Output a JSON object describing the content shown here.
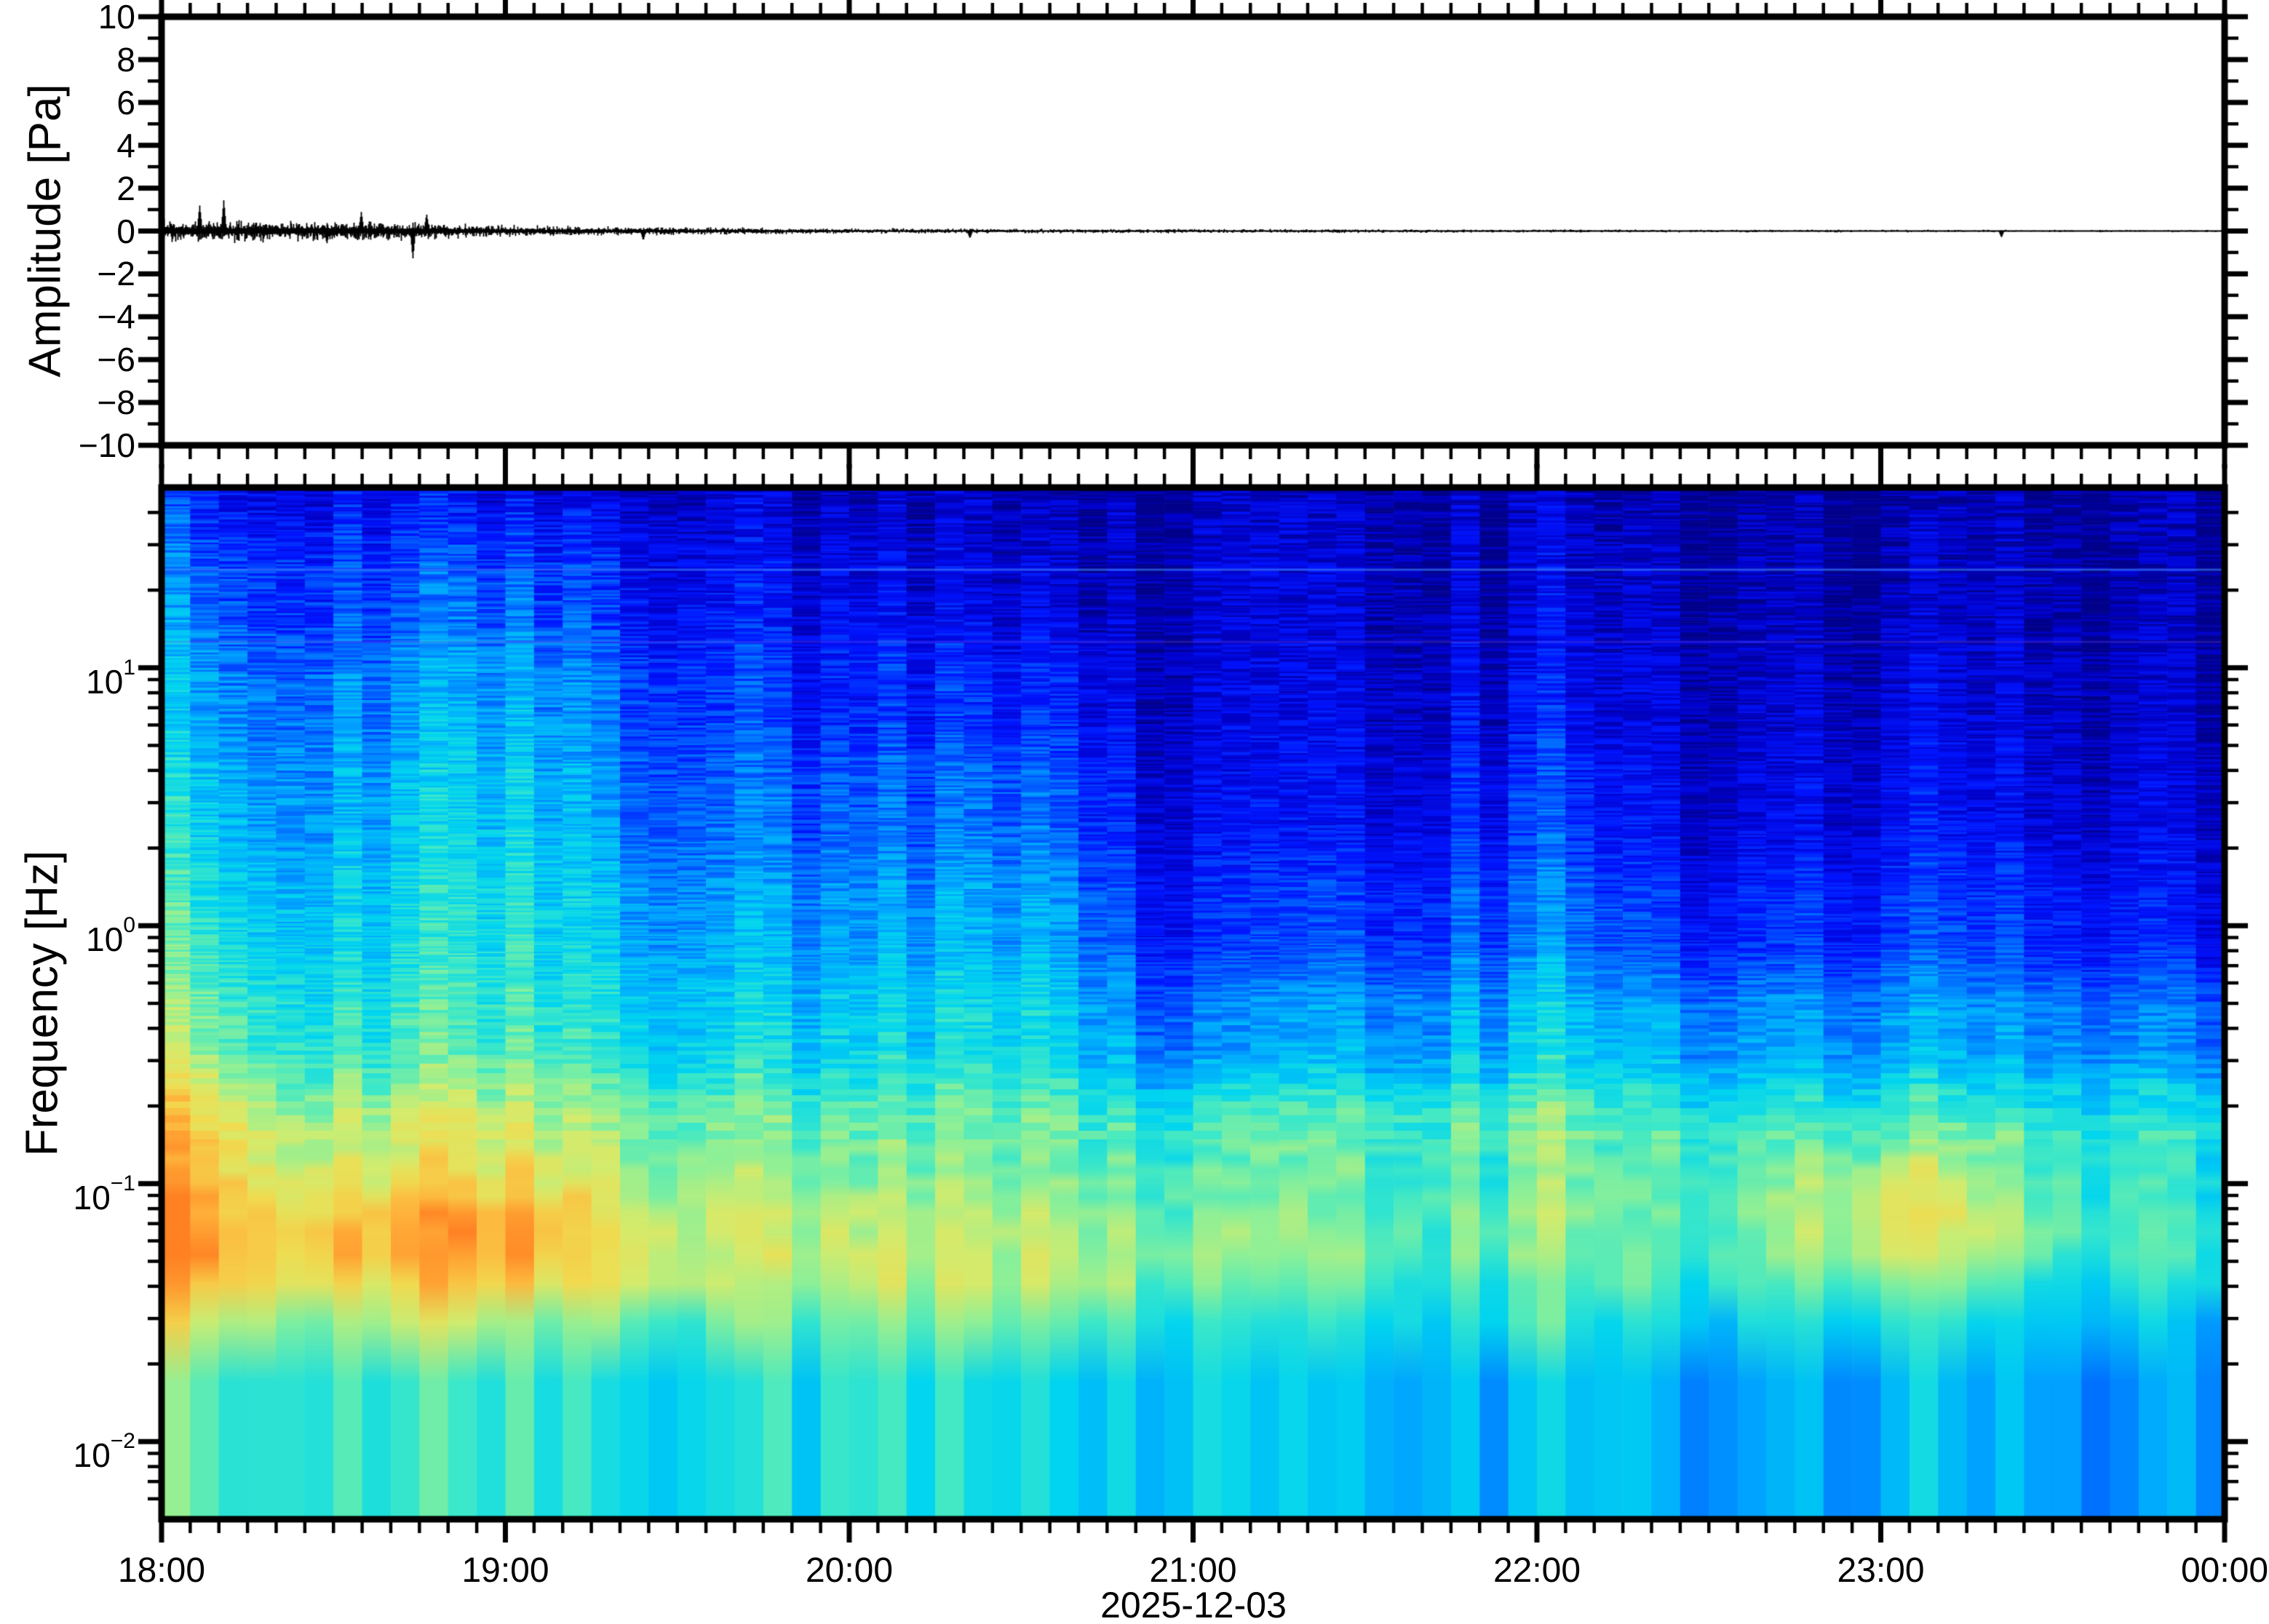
{
  "figure": {
    "date_label": "2025-12-03",
    "x_axis": {
      "hour_labels": [
        "18:00",
        "19:00",
        "20:00",
        "21:00",
        "22:00",
        "23:00",
        "00:00"
      ],
      "minor_tick_minutes": 5
    },
    "waveform_panel": {
      "ylabel": "Amplitude [Pa]",
      "ylim": [
        -10,
        10
      ],
      "yticks": [
        {
          "value": 10,
          "label": "10"
        },
        {
          "value": 8,
          "label": "8"
        },
        {
          "value": 6,
          "label": "6"
        },
        {
          "value": 4,
          "label": "4"
        },
        {
          "value": 2,
          "label": "2"
        },
        {
          "value": 0,
          "label": "0"
        },
        {
          "value": -2,
          "label": "−2"
        },
        {
          "value": -4,
          "label": "−4"
        },
        {
          "value": -6,
          "label": "−6"
        },
        {
          "value": -8,
          "label": "−8"
        },
        {
          "value": -10,
          "label": "−10"
        }
      ]
    },
    "spectrogram_panel": {
      "ylabel": "Frequency [Hz]",
      "freq_limits_hz": [
        0.005,
        50
      ],
      "yticks": [
        {
          "value": 10,
          "base": "10",
          "exp": "1"
        },
        {
          "value": 1,
          "base": "10",
          "exp": "0"
        },
        {
          "value": 0.1,
          "base": "10",
          "exp": "−1"
        },
        {
          "value": 0.01,
          "base": "10",
          "exp": "−2"
        }
      ]
    }
  },
  "style": {
    "background": "#ffffff",
    "frame_color": "#000000",
    "trace_color": "#000000"
  },
  "chart_data": [
    {
      "type": "line",
      "name": "infrasound-waveform",
      "ylabel": "Amplitude [Pa]",
      "ylim": [
        -10,
        10
      ],
      "x_start": "18:00",
      "x_end": "00:00",
      "baseline_pa": 0,
      "envelope_sigma_pa": [
        [
          0.0,
          0.25
        ],
        [
          0.3,
          0.24
        ],
        [
          0.6,
          0.22
        ],
        [
          0.8,
          0.18
        ],
        [
          1.0,
          0.13
        ],
        [
          1.3,
          0.1
        ],
        [
          1.7,
          0.08
        ],
        [
          2.0,
          0.06
        ],
        [
          2.5,
          0.05
        ],
        [
          3.0,
          0.045
        ],
        [
          3.5,
          0.04
        ],
        [
          4.0,
          0.035
        ],
        [
          4.5,
          0.03
        ],
        [
          5.0,
          0.028
        ],
        [
          5.5,
          0.026
        ],
        [
          6.0,
          0.025
        ]
      ],
      "spikes": [
        {
          "t_hours": 0.11,
          "amp_pa": 1.2
        },
        {
          "t_hours": 0.18,
          "amp_pa": 1.45
        },
        {
          "t_hours": 0.48,
          "amp_pa": -0.6
        },
        {
          "t_hours": 0.58,
          "amp_pa": 0.9
        },
        {
          "t_hours": 0.73,
          "amp_pa": -1.3
        },
        {
          "t_hours": 0.77,
          "amp_pa": 0.8
        },
        {
          "t_hours": 1.4,
          "amp_pa": -0.45
        },
        {
          "t_hours": 2.35,
          "amp_pa": -0.35
        },
        {
          "t_hours": 5.35,
          "amp_pa": -0.3
        }
      ]
    },
    {
      "type": "heatmap",
      "name": "spectrogram",
      "ylabel": "Frequency [Hz]",
      "log_freq_axis": true,
      "freq_limits_hz": [
        0.005,
        50
      ],
      "times": [
        "18:00",
        "18:30",
        "19:00",
        "19:30",
        "20:00",
        "20:30",
        "21:00",
        "21:30",
        "22:00",
        "22:30",
        "23:00",
        "23:30",
        "00:00"
      ],
      "freqs_hz": [
        50,
        20,
        8,
        3,
        1,
        0.4,
        0.15,
        0.05,
        0.015,
        0.005
      ],
      "values_norm": [
        [
          0.2,
          0.18,
          0.18,
          0.13,
          0.11,
          0.11,
          0.09,
          0.08,
          0.08,
          0.07,
          0.07,
          0.05,
          0.05
        ],
        [
          0.3,
          0.27,
          0.3,
          0.2,
          0.16,
          0.15,
          0.11,
          0.1,
          0.1,
          0.09,
          0.1,
          0.07,
          0.06
        ],
        [
          0.38,
          0.34,
          0.4,
          0.27,
          0.22,
          0.24,
          0.13,
          0.12,
          0.15,
          0.11,
          0.14,
          0.1,
          0.09
        ],
        [
          0.44,
          0.4,
          0.46,
          0.32,
          0.29,
          0.33,
          0.16,
          0.15,
          0.22,
          0.14,
          0.18,
          0.13,
          0.12
        ],
        [
          0.5,
          0.46,
          0.51,
          0.4,
          0.38,
          0.42,
          0.22,
          0.24,
          0.3,
          0.22,
          0.26,
          0.21,
          0.17
        ],
        [
          0.56,
          0.53,
          0.56,
          0.48,
          0.46,
          0.5,
          0.34,
          0.37,
          0.42,
          0.37,
          0.4,
          0.35,
          0.31
        ],
        [
          0.73,
          0.68,
          0.71,
          0.62,
          0.6,
          0.62,
          0.55,
          0.56,
          0.58,
          0.55,
          0.56,
          0.52,
          0.5
        ],
        [
          0.86,
          0.8,
          0.83,
          0.72,
          0.68,
          0.66,
          0.6,
          0.58,
          0.6,
          0.56,
          0.62,
          0.52,
          0.5
        ],
        [
          0.62,
          0.6,
          0.58,
          0.55,
          0.56,
          0.54,
          0.48,
          0.45,
          0.46,
          0.44,
          0.48,
          0.42,
          0.4
        ],
        [
          0.45,
          0.44,
          0.46,
          0.44,
          0.45,
          0.42,
          0.4,
          0.36,
          0.38,
          0.34,
          0.38,
          0.3,
          0.28
        ]
      ],
      "hotspots": [
        {
          "t_hours": 5.08,
          "log10_f": -1.15,
          "amp": 0.16,
          "sigma_t": 0.28,
          "sigma_logf": 0.22
        },
        {
          "t_hours": 0.85,
          "log10_f": -1.28,
          "amp": 0.08,
          "sigma_t": 0.3,
          "sigma_logf": 0.25
        },
        {
          "t_hours": 0.1,
          "log10_f": -0.9,
          "amp": 0.08,
          "sigma_t": 0.15,
          "sigma_logf": 0.5
        },
        {
          "t_hours": 2.6,
          "log10_f": -1.5,
          "amp": 0.06,
          "sigma_t": 0.4,
          "sigma_logf": 0.3
        }
      ],
      "persistent_lines_hz": [
        {
          "freq_hz": 24,
          "rgba": "rgba(60,130,255,0.60)"
        },
        {
          "freq_hz": 12.6,
          "rgba": "rgba(110,70,230,0.30)"
        }
      ],
      "colormap_stops": [
        [
          0.0,
          "#00007a"
        ],
        [
          0.1,
          "#0000c8"
        ],
        [
          0.2,
          "#0014ff"
        ],
        [
          0.3,
          "#0064ff"
        ],
        [
          0.38,
          "#00a4ff"
        ],
        [
          0.46,
          "#00d4f0"
        ],
        [
          0.54,
          "#3ce8c8"
        ],
        [
          0.62,
          "#8cf098"
        ],
        [
          0.7,
          "#d2ec6e"
        ],
        [
          0.78,
          "#f0dc50"
        ],
        [
          0.86,
          "#ffb43c"
        ],
        [
          0.93,
          "#ff8c28"
        ],
        [
          1.0,
          "#ff6414"
        ]
      ]
    }
  ]
}
